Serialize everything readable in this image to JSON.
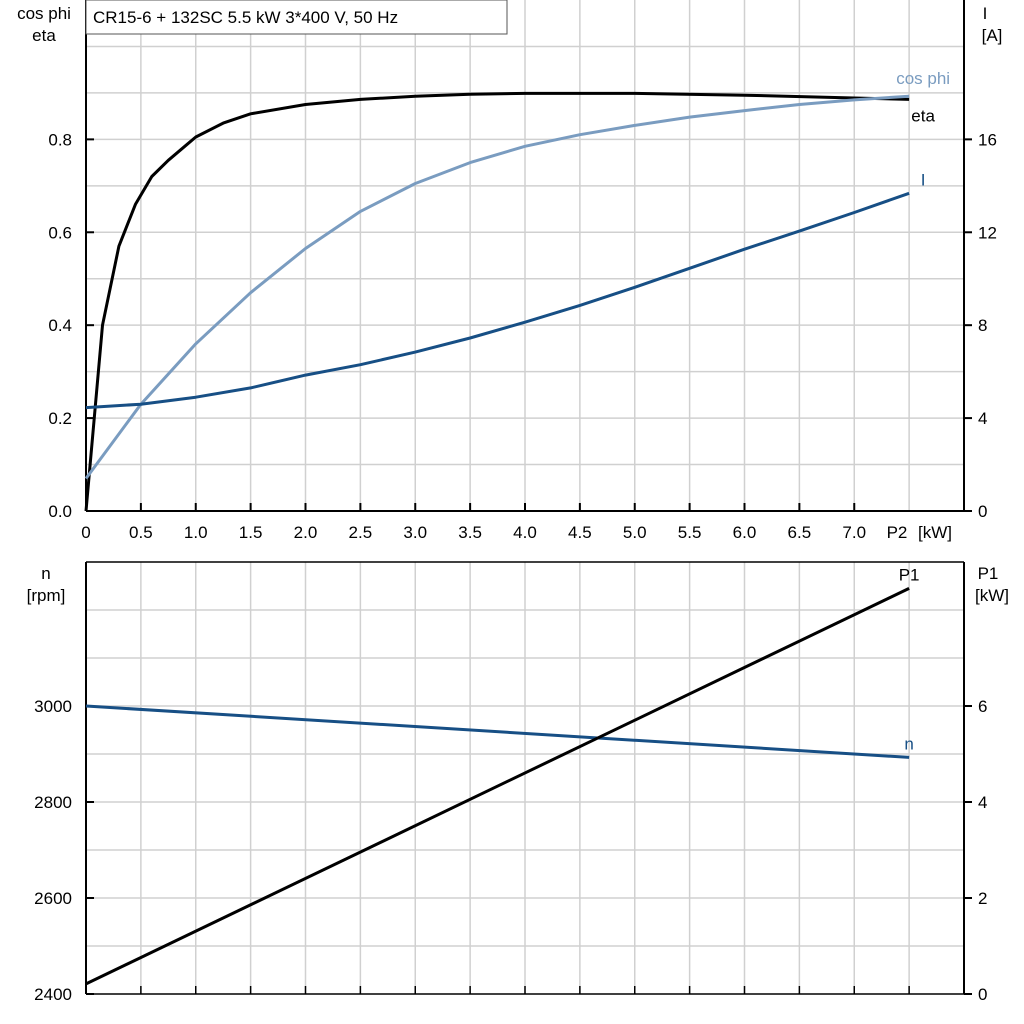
{
  "chart_data": [
    {
      "type": "line",
      "title": "CR15-6 + 132SC   5.5 kW   3*400 V, 50 Hz",
      "xlabel": "P2 [kW]",
      "xlabel_short": "P2",
      "xunit": "[kW]",
      "ylabel_left": [
        "cos phi",
        "eta"
      ],
      "ylabel_right": [
        "I",
        "[A]"
      ],
      "xlim": [
        0,
        8
      ],
      "ylim_left": [
        0,
        1.1
      ],
      "ylim_right": [
        0,
        22
      ],
      "x_ticks": [
        "0",
        "0.5",
        "1.0",
        "1.5",
        "2.0",
        "2.5",
        "3.0",
        "3.5",
        "4.0",
        "4.5",
        "5.0",
        "5.5",
        "6.0",
        "6.5",
        "7.0"
      ],
      "x_tick_values": [
        0,
        0.5,
        1,
        1.5,
        2,
        2.5,
        3,
        3.5,
        4,
        4.5,
        5,
        5.5,
        6,
        6.5,
        7
      ],
      "y_left_ticks": [
        "0.0",
        "0.2",
        "0.4",
        "0.6",
        "0.8"
      ],
      "y_left_tick_values": [
        0,
        0.2,
        0.4,
        0.6,
        0.8
      ],
      "y_right_ticks": [
        "0",
        "4",
        "8",
        "12",
        "16"
      ],
      "y_right_tick_values": [
        0,
        4,
        8,
        12,
        16
      ],
      "grid": true,
      "series": [
        {
          "name": "eta",
          "axis": "left",
          "color": "#000000",
          "x": [
            0,
            0.15,
            0.3,
            0.45,
            0.6,
            0.75,
            0.9,
            1.0,
            1.25,
            1.5,
            2,
            2.5,
            3,
            3.5,
            4,
            5,
            6,
            7,
            7.5
          ],
          "y": [
            0,
            0.4,
            0.57,
            0.66,
            0.72,
            0.755,
            0.785,
            0.805,
            0.835,
            0.855,
            0.875,
            0.886,
            0.893,
            0.897,
            0.899,
            0.899,
            0.895,
            0.889,
            0.886
          ]
        },
        {
          "name": "cos phi",
          "axis": "left",
          "color": "#7a9cc0",
          "x": [
            0,
            0.5,
            1,
            1.5,
            2,
            2.5,
            3,
            3.5,
            4,
            4.5,
            5,
            5.5,
            6,
            6.5,
            7,
            7.5
          ],
          "y": [
            0.07,
            0.23,
            0.36,
            0.47,
            0.565,
            0.645,
            0.705,
            0.75,
            0.785,
            0.81,
            0.83,
            0.848,
            0.862,
            0.875,
            0.885,
            0.893
          ]
        },
        {
          "name": "I",
          "axis": "right",
          "color": "#174f85",
          "x": [
            0,
            0.5,
            1,
            1.5,
            2,
            2.5,
            3,
            3.5,
            4,
            4.5,
            5,
            5.5,
            6,
            6.5,
            7,
            7.5
          ],
          "y": [
            4.45,
            4.6,
            4.9,
            5.3,
            5.85,
            6.3,
            6.84,
            7.45,
            8.13,
            8.85,
            9.63,
            10.45,
            11.27,
            12.05,
            12.85,
            13.68
          ]
        }
      ]
    },
    {
      "type": "line",
      "ylabel_left": [
        "n",
        "[rpm]"
      ],
      "ylabel_right": [
        "P1",
        "[kW]"
      ],
      "xlim": [
        0,
        8
      ],
      "ylim_left": [
        2400,
        3300
      ],
      "ylim_right": [
        0,
        9
      ],
      "y_left_ticks": [
        "2400",
        "2600",
        "2800",
        "3000"
      ],
      "y_left_tick_values": [
        2400,
        2600,
        2800,
        3000
      ],
      "y_right_ticks": [
        "0",
        "2",
        "4",
        "6"
      ],
      "y_right_tick_values": [
        0,
        2,
        4,
        6
      ],
      "grid": true,
      "series": [
        {
          "name": "n",
          "axis": "left",
          "color": "#174f85",
          "x": [
            0,
            7.5
          ],
          "y": [
            3000,
            2893
          ]
        },
        {
          "name": "P1",
          "axis": "right",
          "color": "#000000",
          "x": [
            0,
            7.5
          ],
          "y": [
            0.21,
            8.45
          ]
        }
      ]
    }
  ]
}
